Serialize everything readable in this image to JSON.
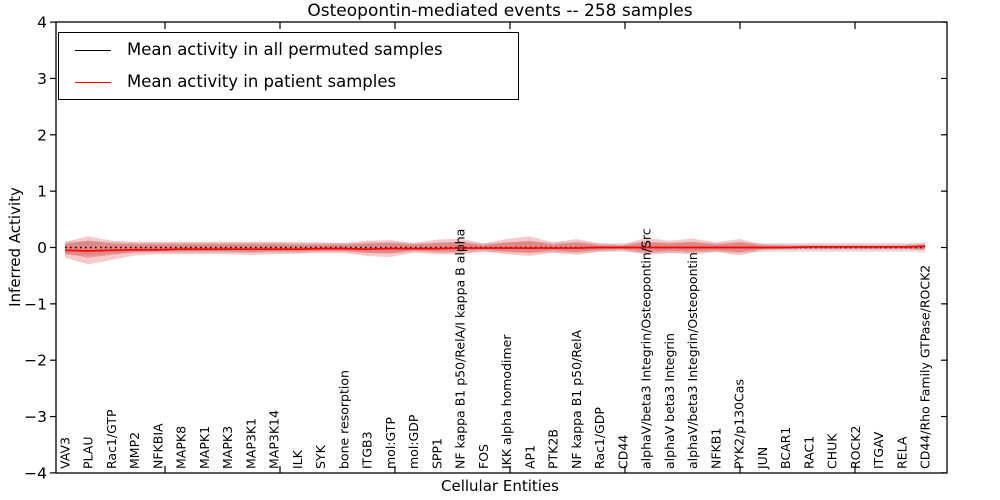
{
  "figure": {
    "title": "Osteopontin-mediated events -- 258 samples",
    "xlabel": "Cellular Entities",
    "ylabel": "Inferred Activity"
  },
  "legend": {
    "entries": [
      {
        "label": "Mean activity in all permuted samples",
        "color": "#000000"
      },
      {
        "label": "Mean activity in patient samples",
        "color": "#ff0000"
      }
    ]
  },
  "chart_data": {
    "type": "line",
    "title": "Osteopontin-mediated events -- 258 samples",
    "xlabel": "Cellular Entities",
    "ylabel": "Inferred Activity",
    "ylim": [
      -4,
      4
    ],
    "yticks": [
      -4,
      -3,
      -2,
      -1,
      0,
      1,
      2,
      3,
      4
    ],
    "grid": false,
    "legend_position": "upper left",
    "categories": [
      "VAV3",
      "PLAU",
      "Rac1/GTP",
      "MMP2",
      "NFKBIA",
      "MAPK8",
      "MAPK1",
      "MAPK3",
      "MAP3K1",
      "MAP3K14",
      "ILK",
      "SYK",
      "bone resorption",
      "ITGB3",
      "mol:GTP",
      "mol:GDP",
      "SPP1",
      "NF kappa B1 p50/RelA/I kappa B alpha",
      "FOS",
      "IKK alpha homodimer",
      "AP1",
      "PTK2B",
      "NF kappa B1 p50/RelA",
      "Rac1/GDP",
      "CD44",
      "alphaV/beta3 Integrin/Osteopontin/Src",
      "alphaV beta3 Integrin",
      "alphaV/beta3 Integrin/Osteopontin",
      "NFKB1",
      "PYK2/p130Cas",
      "JUN",
      "BCAR1",
      "RAC1",
      "CHUK",
      "ROCK2",
      "ITGAV",
      "RELA",
      "CD44/Rho Family GTPase/ROCK2"
    ],
    "series": [
      {
        "name": "Mean activity in all permuted samples",
        "color": "#000000",
        "style": "dotted",
        "values": [
          0,
          0,
          0,
          0,
          0,
          0,
          0,
          0,
          0,
          0,
          0,
          0,
          0,
          0,
          0,
          0,
          0,
          0,
          0,
          0,
          0,
          0,
          0,
          0,
          0,
          0,
          0,
          0,
          0,
          0,
          0,
          0,
          0,
          0,
          0,
          0,
          0,
          0
        ]
      },
      {
        "name": "Mean activity in patient samples",
        "color": "#ff0000",
        "style": "solid",
        "values": [
          -0.05,
          -0.06,
          -0.05,
          -0.04,
          -0.04,
          -0.03,
          -0.03,
          -0.03,
          -0.03,
          -0.03,
          -0.03,
          -0.02,
          -0.02,
          -0.03,
          -0.02,
          -0.02,
          -0.02,
          -0.01,
          -0.01,
          -0.01,
          -0.01,
          -0.01,
          -0.01,
          0.0,
          0.0,
          0.0,
          0.0,
          0.0,
          0.0,
          0.0,
          0.0,
          0.0,
          0.01,
          0.01,
          0.01,
          0.01,
          0.01,
          0.02
        ]
      }
    ],
    "bands": [
      {
        "name": "permuted-samples-std",
        "color": "#9a9a9a",
        "opacity": 0.28,
        "upper": [
          0.1,
          0.12,
          0.1,
          0.09,
          0.09,
          0.09,
          0.09,
          0.09,
          0.09,
          0.09,
          0.09,
          0.08,
          0.08,
          0.09,
          0.1,
          0.08,
          0.09,
          0.1,
          0.08,
          0.09,
          0.1,
          0.09,
          0.1,
          0.08,
          0.08,
          0.1,
          0.09,
          0.1,
          0.08,
          0.1,
          0.08,
          0.08,
          0.08,
          0.08,
          0.08,
          0.08,
          0.08,
          0.09
        ],
        "lower": [
          -0.12,
          -0.14,
          -0.11,
          -0.1,
          -0.09,
          -0.09,
          -0.09,
          -0.09,
          -0.1,
          -0.09,
          -0.09,
          -0.08,
          -0.08,
          -0.1,
          -0.11,
          -0.08,
          -0.09,
          -0.1,
          -0.08,
          -0.09,
          -0.1,
          -0.09,
          -0.1,
          -0.08,
          -0.08,
          -0.1,
          -0.09,
          -0.1,
          -0.08,
          -0.1,
          -0.08,
          -0.08,
          -0.08,
          -0.08,
          -0.08,
          -0.08,
          -0.08,
          -0.09
        ]
      },
      {
        "name": "patient-samples-std-outer",
        "color": "#e04040",
        "opacity": 0.28,
        "upper": [
          0.1,
          0.2,
          0.12,
          0.1,
          0.1,
          0.1,
          0.1,
          0.1,
          0.1,
          0.1,
          0.09,
          0.09,
          0.08,
          0.12,
          0.13,
          0.08,
          0.14,
          0.16,
          0.07,
          0.15,
          0.2,
          0.09,
          0.15,
          0.07,
          0.05,
          0.17,
          0.12,
          0.16,
          0.09,
          0.15,
          0.06,
          0.05,
          0.05,
          0.05,
          0.05,
          0.05,
          0.05,
          0.08
        ],
        "lower": [
          -0.18,
          -0.3,
          -0.22,
          -0.14,
          -0.12,
          -0.12,
          -0.12,
          -0.12,
          -0.13,
          -0.12,
          -0.11,
          -0.1,
          -0.1,
          -0.15,
          -0.17,
          -0.09,
          -0.12,
          -0.12,
          -0.07,
          -0.12,
          -0.15,
          -0.09,
          -0.13,
          -0.07,
          -0.05,
          -0.13,
          -0.1,
          -0.12,
          -0.08,
          -0.14,
          -0.05,
          -0.04,
          -0.04,
          -0.04,
          -0.04,
          -0.04,
          -0.04,
          -0.05
        ]
      },
      {
        "name": "patient-samples-std-inner",
        "color": "#dd3838",
        "opacity": 0.36,
        "upper": [
          0.06,
          0.12,
          0.07,
          0.06,
          0.06,
          0.06,
          0.06,
          0.06,
          0.06,
          0.06,
          0.05,
          0.05,
          0.05,
          0.07,
          0.08,
          0.05,
          0.08,
          0.1,
          0.04,
          0.09,
          0.12,
          0.05,
          0.09,
          0.04,
          0.03,
          0.1,
          0.07,
          0.1,
          0.05,
          0.09,
          0.04,
          0.03,
          0.03,
          0.03,
          0.03,
          0.03,
          0.03,
          0.05
        ],
        "lower": [
          -0.11,
          -0.18,
          -0.13,
          -0.08,
          -0.07,
          -0.07,
          -0.07,
          -0.07,
          -0.08,
          -0.07,
          -0.07,
          -0.06,
          -0.06,
          -0.09,
          -0.1,
          -0.05,
          -0.07,
          -0.07,
          -0.04,
          -0.07,
          -0.09,
          -0.05,
          -0.08,
          -0.04,
          -0.03,
          -0.08,
          -0.06,
          -0.07,
          -0.05,
          -0.08,
          -0.03,
          -0.02,
          -0.02,
          -0.02,
          -0.02,
          -0.02,
          -0.02,
          -0.03
        ]
      }
    ]
  }
}
